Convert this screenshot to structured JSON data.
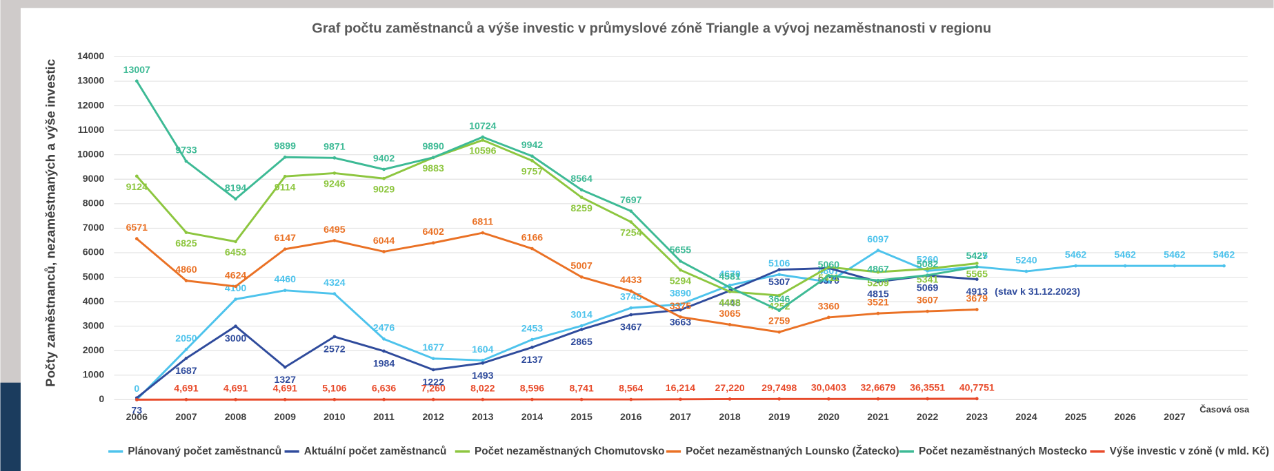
{
  "chart_data": {
    "type": "line",
    "title": "Graf počtu zaměstnanců a výše investic v průmyslové zóně Triangle a vývoj nezaměstnanosti v regionu",
    "y_label": "Počty zaměstnanců, nezaměstnaných a výše investic",
    "x_label": "Časová osa",
    "annotation": "(stav k 31.12.2023)",
    "categories": [
      "2006",
      "2007",
      "2008",
      "2009",
      "2010",
      "2011",
      "2012",
      "2013",
      "2014",
      "2015",
      "2016",
      "2017",
      "2018",
      "2019",
      "2020",
      "2021",
      "2022",
      "2023",
      "2024",
      "2025",
      "2026",
      "2027",
      null
    ],
    "ylim": [
      0,
      14000
    ],
    "yticks": [
      0,
      1000,
      2000,
      3000,
      4000,
      5000,
      6000,
      7000,
      8000,
      9000,
      10000,
      11000,
      12000,
      13000,
      14000
    ],
    "grid": true,
    "legend": "bottom",
    "series": [
      {
        "name": "Plánovaný počet zaměstnanců",
        "color": "#4dc3ec",
        "values": [
          0,
          2050,
          4100,
          4460,
          4324,
          2476,
          1677,
          1604,
          2453,
          3014,
          3745,
          3890,
          4670,
          5106,
          4807,
          6097,
          5260,
          5425,
          5240,
          5462,
          5462,
          5462,
          5462
        ]
      },
      {
        "name": "Aktuální počet zaměstnanců",
        "color": "#2f4b9c",
        "values": [
          73,
          1687,
          3000,
          1327,
          2572,
          1984,
          1222,
          1493,
          2137,
          2865,
          3467,
          3663,
          4448,
          5307,
          5370,
          4815,
          5069,
          4913,
          null,
          null,
          null,
          null,
          null
        ]
      },
      {
        "name": "Počet nezaměstnaných Chomutovsko",
        "color": "#8dc63f",
        "values": [
          9124,
          6825,
          6453,
          9114,
          9246,
          9029,
          9883,
          10596,
          9757,
          8259,
          7254,
          5294,
          4408,
          4252,
          5411,
          5209,
          5341,
          5565,
          null,
          null,
          null,
          null,
          null
        ]
      },
      {
        "name": "Počet nezaměstnaných Lounsko (Žatecko)",
        "color": "#ea7125",
        "values": [
          6571,
          4860,
          4624,
          6147,
          6495,
          6044,
          6402,
          6811,
          6166,
          5007,
          4433,
          3375,
          3065,
          2759,
          3360,
          3521,
          3607,
          3679,
          null,
          null,
          null,
          null,
          null
        ]
      },
      {
        "name": "Počet nezaměstnaných Mostecko",
        "color": "#3dba95",
        "values": [
          13007,
          9733,
          8194,
          9899,
          9871,
          9402,
          9890,
          10724,
          9942,
          8564,
          7697,
          5655,
          4581,
          3646,
          5060,
          4867,
          5082,
          5427,
          null,
          null,
          null,
          null,
          null
        ]
      },
      {
        "name": "Výše investic v zóně (v mld. Kč)",
        "color": "#e84a2a",
        "values": [
          0,
          4.691,
          4.691,
          4.691,
          5.106,
          6.636,
          7.26,
          8.022,
          8.596,
          8.741,
          8.564,
          16.214,
          27.22,
          29.7498,
          30.0403,
          32.6679,
          36.3551,
          40.7751,
          null,
          null,
          null,
          null,
          null
        ],
        "value_labels": [
          null,
          "4,691",
          "4,691",
          "4,691",
          "5,106",
          "6,636",
          "7,260",
          "8,022",
          "8,596",
          "8,741",
          "8,564",
          "16,214",
          "27,220",
          "29,7498",
          "30,0403",
          "32,6679",
          "36,3551",
          "40,7751",
          null,
          null,
          null,
          null,
          null
        ]
      }
    ]
  }
}
